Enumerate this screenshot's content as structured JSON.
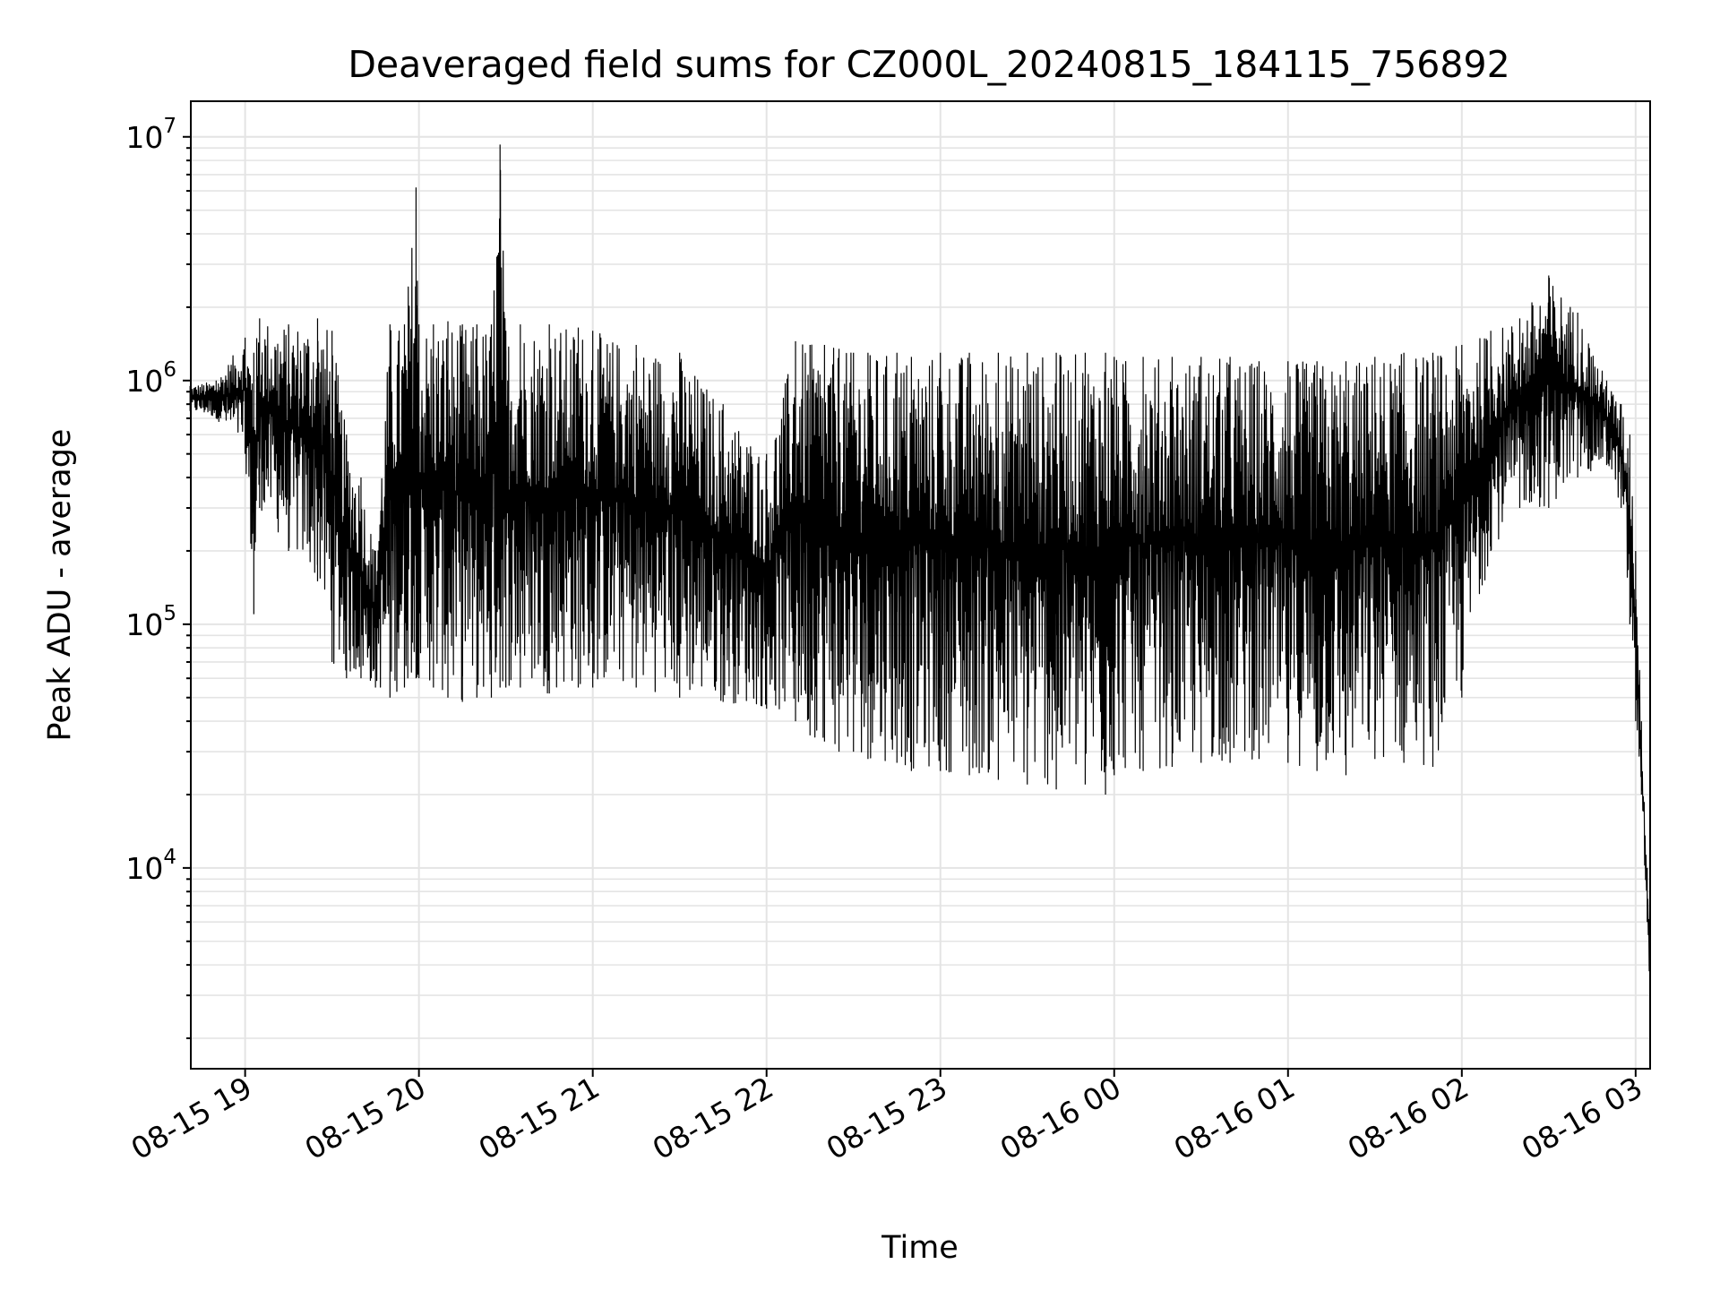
{
  "chart_data": {
    "type": "line",
    "title": "Deaveraged field sums for CZ000L_20240815_184115_756892",
    "xlabel": "Time",
    "ylabel": "Peak ADU - average",
    "x_scale": "time",
    "y_scale": "log",
    "xlim": [
      "2024-08-15 18:41:15",
      "2024-08-16 03:05:00"
    ],
    "ylim": [
      1500,
      14000000
    ],
    "x_ticks": [
      "08-15 19",
      "08-15 20",
      "08-15 21",
      "08-15 22",
      "08-15 23",
      "08-16 00",
      "08-16 01",
      "08-16 02",
      "08-16 03"
    ],
    "y_ticks": [
      {
        "base": "10",
        "exp": "4",
        "value": 10000
      },
      {
        "base": "10",
        "exp": "5",
        "value": 100000
      },
      {
        "base": "10",
        "exp": "6",
        "value": 1000000
      },
      {
        "base": "10",
        "exp": "7",
        "value": 10000000
      }
    ],
    "grid": true,
    "line_color": "#000000",
    "series": [
      {
        "x": [
          "2024-08-15 18:41",
          "2024-08-15 18:50",
          "2024-08-15 19:00",
          "2024-08-15 19:03",
          "2024-08-15 19:05",
          "2024-08-15 19:15",
          "2024-08-15 19:25",
          "2024-08-15 19:30",
          "2024-08-15 19:35",
          "2024-08-15 19:40",
          "2024-08-15 19:45",
          "2024-08-15 19:50",
          "2024-08-15 19:55",
          "2024-08-15 19:59",
          "2024-08-15 20:00",
          "2024-08-15 20:05",
          "2024-08-15 20:10",
          "2024-08-15 20:15",
          "2024-08-15 20:20",
          "2024-08-15 20:25",
          "2024-08-15 20:28",
          "2024-08-15 20:30",
          "2024-08-15 20:35",
          "2024-08-15 20:45",
          "2024-08-15 20:55",
          "2024-08-15 21:00",
          "2024-08-15 21:15",
          "2024-08-15 21:30",
          "2024-08-15 21:45",
          "2024-08-15 22:00",
          "2024-08-15 22:10",
          "2024-08-15 22:15",
          "2024-08-15 22:20",
          "2024-08-15 22:25",
          "2024-08-15 22:30",
          "2024-08-15 22:35",
          "2024-08-15 22:45",
          "2024-08-15 22:50",
          "2024-08-15 23:00",
          "2024-08-15 23:10",
          "2024-08-15 23:20",
          "2024-08-15 23:30",
          "2024-08-15 23:40",
          "2024-08-15 23:50",
          "2024-08-15 23:57",
          "2024-08-16 00:00",
          "2024-08-16 00:10",
          "2024-08-16 00:20",
          "2024-08-16 00:30",
          "2024-08-16 00:40",
          "2024-08-16 00:50",
          "2024-08-16 01:00",
          "2024-08-16 01:10",
          "2024-08-16 01:20",
          "2024-08-16 01:30",
          "2024-08-16 01:40",
          "2024-08-16 01:50",
          "2024-08-16 02:00",
          "2024-08-16 02:10",
          "2024-08-16 02:20",
          "2024-08-16 02:30",
          "2024-08-16 02:40",
          "2024-08-16 02:50",
          "2024-08-16 02:55",
          "2024-08-16 02:58",
          "2024-08-16 03:00",
          "2024-08-16 03:02",
          "2024-08-16 03:04",
          "2024-08-16 03:05"
        ],
        "low": [
          750000,
          700000,
          500000,
          110000,
          300000,
          200000,
          150000,
          70000,
          60000,
          60000,
          55000,
          50000,
          55000,
          60000,
          60000,
          55000,
          50000,
          48000,
          50000,
          50000,
          55000,
          55000,
          55000,
          52000,
          55000,
          55000,
          55000,
          50000,
          48000,
          45000,
          40000,
          35000,
          33000,
          30000,
          30000,
          28000,
          27000,
          25000,
          25000,
          24000,
          23000,
          22000,
          21000,
          22000,
          20000,
          24000,
          25000,
          26000,
          27000,
          27000,
          28000,
          27000,
          25000,
          24000,
          28000,
          27000,
          26000,
          50000,
          200000,
          300000,
          300000,
          400000,
          450000,
          300000,
          100000,
          40000,
          20000,
          6000,
          3000
        ],
        "high": [
          950000,
          1000000,
          1500000,
          1300000,
          1800000,
          1700000,
          1800000,
          1600000,
          600000,
          400000,
          200000,
          1700000,
          1700000,
          6200000,
          1700000,
          1700000,
          1750000,
          1700000,
          1700000,
          1700000,
          9300000,
          1600000,
          1700000,
          1700000,
          1650000,
          1600000,
          1400000,
          1300000,
          800000,
          500000,
          1450000,
          1400000,
          1400000,
          1350000,
          1300000,
          1300000,
          1300000,
          1250000,
          1300000,
          1300000,
          1300000,
          1300000,
          1300000,
          1300000,
          1300000,
          1250000,
          1250000,
          1250000,
          1250000,
          1250000,
          1200000,
          1200000,
          1200000,
          1200000,
          1250000,
          1300000,
          1300000,
          1400000,
          1600000,
          1800000,
          2700000,
          1900000,
          1000000,
          800000,
          600000,
          200000,
          40000,
          10000,
          5000
        ]
      }
    ]
  }
}
